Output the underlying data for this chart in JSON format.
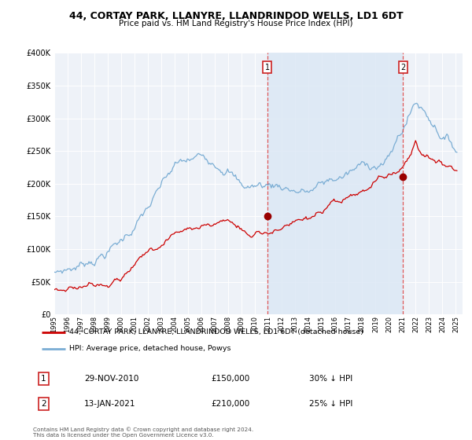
{
  "title": "44, CORTAY PARK, LLANYRE, LLANDRINDOD WELLS, LD1 6DT",
  "subtitle": "Price paid vs. HM Land Registry's House Price Index (HPI)",
  "legend_line1": "44, CORTAY PARK, LLANYRE, LLANDRINDOD WELLS, LD1 6DT (detached house)",
  "legend_line2": "HPI: Average price, detached house, Powys",
  "footer": "Contains HM Land Registry data © Crown copyright and database right 2024.\nThis data is licensed under the Open Government Licence v3.0.",
  "annotation1_label": "1",
  "annotation1_date": "29-NOV-2010",
  "annotation1_price": "£150,000",
  "annotation1_hpi": "30% ↓ HPI",
  "annotation2_label": "2",
  "annotation2_date": "13-JAN-2021",
  "annotation2_price": "£210,000",
  "annotation2_hpi": "25% ↓ HPI",
  "property_color": "#cc0000",
  "hpi_color": "#7aadd4",
  "shade_color": "#dce8f5",
  "background_color": "#eef2f8",
  "grid_color": "#d8dde8",
  "ylim": [
    0,
    400000
  ],
  "yticks": [
    0,
    50000,
    100000,
    150000,
    200000,
    250000,
    300000,
    350000,
    400000
  ],
  "year_start": 1995,
  "year_end": 2025,
  "sale1_year": 2010.91,
  "sale1_price": 150000,
  "sale2_year": 2021.04,
  "sale2_price": 210000
}
